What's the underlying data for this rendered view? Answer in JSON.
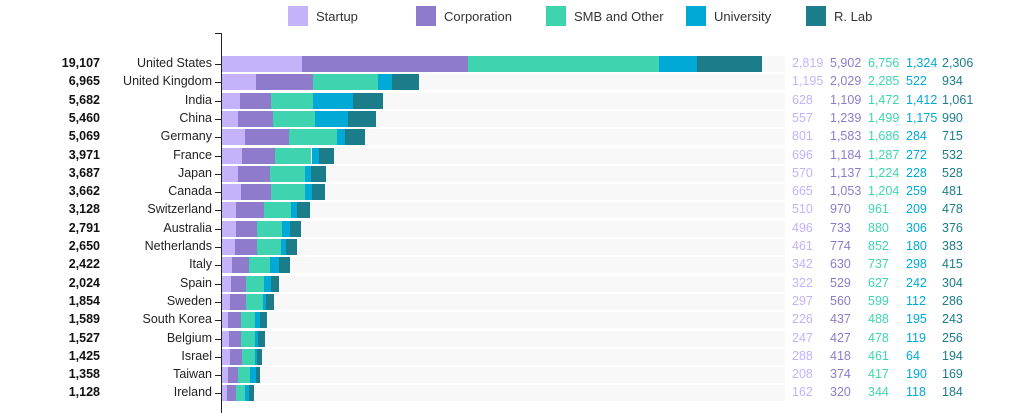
{
  "chart_data": {
    "type": "bar",
    "orientation": "horizontal-stacked",
    "series": [
      {
        "name": "Startup",
        "color": "#c4b2fb",
        "values": [
          2819,
          1195,
          628,
          557,
          801,
          696,
          570,
          665,
          510,
          496,
          461,
          342,
          322,
          297,
          226,
          247,
          288,
          208,
          162
        ]
      },
      {
        "name": "Corporation",
        "color": "#8e7bcc",
        "values": [
          5902,
          2029,
          1109,
          1239,
          1583,
          1184,
          1137,
          1053,
          970,
          733,
          774,
          630,
          529,
          560,
          437,
          427,
          418,
          374,
          320
        ]
      },
      {
        "name": "SMB and Other",
        "color": "#3fd4b0",
        "values": [
          6756,
          2285,
          1472,
          1499,
          1686,
          1287,
          1224,
          1204,
          961,
          880,
          852,
          737,
          627,
          599,
          488,
          478,
          461,
          417,
          344
        ]
      },
      {
        "name": "University",
        "color": "#00a9d6",
        "values": [
          1324,
          522,
          1412,
          1175,
          284,
          272,
          228,
          259,
          209,
          306,
          180,
          298,
          242,
          112,
          195,
          119,
          64,
          190,
          118
        ]
      },
      {
        "name": "R. Lab",
        "color": "#1b7d8a",
        "values": [
          2306,
          934,
          1061,
          990,
          715,
          532,
          528,
          481,
          478,
          376,
          383,
          415,
          304,
          286,
          243,
          256,
          194,
          169,
          184
        ]
      }
    ],
    "categories": [
      "United States",
      "United Kingdom",
      "India",
      "China",
      "Germany",
      "France",
      "Japan",
      "Canada",
      "Switzerland",
      "Australia",
      "Netherlands",
      "Italy",
      "Spain",
      "Sweden",
      "South Korea",
      "Belgium",
      "Israel",
      "Taiwan",
      "Ireland"
    ],
    "totals": [
      "19,107",
      "6,965",
      "5,682",
      "5,460",
      "5,069",
      "3,971",
      "3,687",
      "3,662",
      "3,128",
      "2,791",
      "2,650",
      "2,422",
      "2,024",
      "1,854",
      "1,589",
      "1,527",
      "1,425",
      "1,358",
      "1,128"
    ],
    "legend_position": "top",
    "xmax": 19107
  }
}
